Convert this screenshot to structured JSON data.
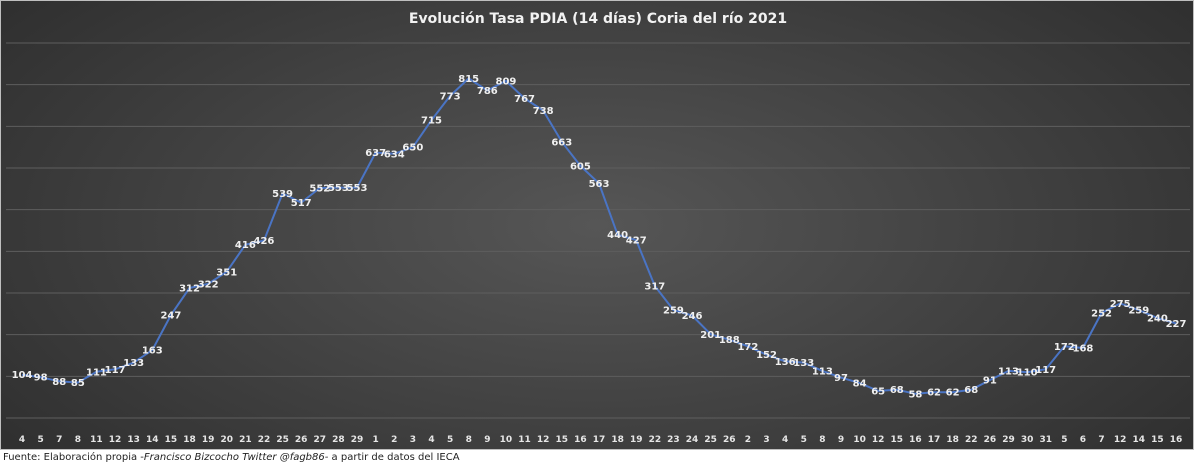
{
  "chart_data": {
    "type": "line",
    "title": "Evolución Tasa PDIA (14 días) Coria del río 2021",
    "xlabel": "",
    "ylabel": "",
    "ylim": [
      0,
      900
    ],
    "grid": true,
    "legend": "none",
    "data_labels": true,
    "line_color": "#4a74c4",
    "background": "#3d3d3d",
    "categories": [
      "4",
      "5",
      "7",
      "8",
      "11",
      "12",
      "13",
      "14",
      "15",
      "18",
      "19",
      "20",
      "21",
      "22",
      "25",
      "26",
      "27",
      "28",
      "29",
      "1",
      "2",
      "3",
      "4",
      "5",
      "8",
      "9",
      "10",
      "11",
      "12",
      "15",
      "16",
      "17",
      "18",
      "19",
      "22",
      "23",
      "24",
      "25",
      "26",
      "2",
      "3",
      "4",
      "5",
      "8",
      "9",
      "10",
      "12",
      "15",
      "16",
      "17",
      "18",
      "22",
      "26",
      "29",
      "30",
      "31",
      "5",
      "6",
      "7",
      "12",
      "14",
      "15",
      "16"
    ],
    "series": [
      {
        "values": [
          104,
          98,
          88,
          85,
          111,
          117,
          133,
          163,
          247,
          312,
          322,
          351,
          416,
          426,
          539,
          517,
          552,
          553,
          553,
          637,
          634,
          650,
          715,
          773,
          815,
          786,
          809,
          767,
          738,
          663,
          605,
          563,
          440,
          427,
          317,
          259,
          246,
          201,
          188,
          172,
          152,
          136,
          133,
          113,
          97,
          84,
          65,
          68,
          58,
          62,
          62,
          68,
          91,
          113,
          110,
          117,
          172,
          168,
          252,
          275,
          259,
          240,
          227
        ]
      }
    ]
  },
  "source_note": {
    "prefix": "Fuente: Elaboración propia -",
    "author": "Francisco Bizcocho Twitter @fagb86-",
    "suffix": " a partir de datos del IECA"
  }
}
